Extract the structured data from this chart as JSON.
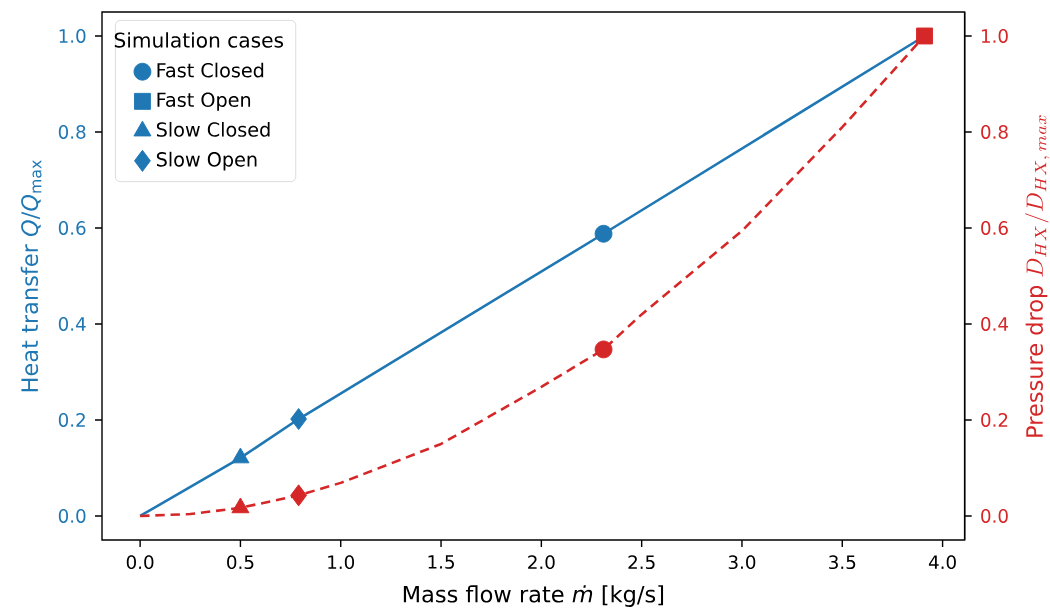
{
  "chart_data": {
    "type": "scatter",
    "xlabel": "Mass flow rate *ṁ* [kg/s]",
    "ylabel": "Heat transfer *Q*/*Q*$_{max}$",
    "y2label": "\\text{Pressure drop } D_{HX}/D_{HX,\\,max}",
    "legend_title": "Simulation cases",
    "legend": "top left",
    "xlim": [
      -0.19,
      4.11
    ],
    "ylim": [
      -0.05,
      1.05
    ],
    "y2lim": [
      -0.05,
      1.05
    ],
    "xticks": [
      {
        "value": 0,
        "label": "0.0"
      },
      {
        "value": 0.5,
        "label": "0.5"
      },
      {
        "value": 1,
        "label": "1.0"
      },
      {
        "value": 1.5,
        "label": "1.5"
      },
      {
        "value": 2,
        "label": "2.0"
      },
      {
        "value": 2.5,
        "label": "2.5"
      },
      {
        "value": 3,
        "label": "3.0"
      },
      {
        "value": 3.5,
        "label": "3.5"
      },
      {
        "value": 4,
        "label": "4.0"
      }
    ],
    "yticks": [
      {
        "value": 0,
        "label": "0.0"
      },
      {
        "value": 0.2,
        "label": "0.2"
      },
      {
        "value": 0.4,
        "label": "0.4"
      },
      {
        "value": 0.6,
        "label": "0.6"
      },
      {
        "value": 0.8,
        "label": "0.8"
      },
      {
        "value": 1,
        "label": "1.0"
      }
    ],
    "y2ticks": [
      {
        "value": 0,
        "label": "0.0"
      },
      {
        "value": 0.2,
        "label": "0.2"
      },
      {
        "value": 0.4,
        "label": "0.4"
      },
      {
        "value": 0.6,
        "label": "0.6"
      },
      {
        "value": 0.8,
        "label": "0.8"
      },
      {
        "value": 1,
        "label": "1.0"
      }
    ],
    "series": [
      {
        "type": "line",
        "x": [
          0,
          0.5,
          0.79,
          2.31,
          3.91
        ],
        "values": [
          0,
          0.121,
          0.202,
          0.588,
          1.0
        ],
        "color": "#1f77b4",
        "marker": "none",
        "line_style": "solid"
      },
      {
        "type": "line",
        "axis": "y2",
        "x": [
          0,
          0.25,
          0.5,
          0.79,
          1.0,
          1.5,
          2.0,
          2.31,
          2.5,
          3.0,
          3.5,
          3.91
        ],
        "values": [
          0,
          0.004,
          0.017,
          0.043,
          0.069,
          0.15,
          0.269,
          0.347,
          0.42,
          0.594,
          0.81,
          1.0
        ],
        "color": "#d62728",
        "marker": "none",
        "line_style": "dashed"
      },
      {
        "name": "Fast Closed",
        "x": [
          2.31
        ],
        "values": [
          0.588
        ],
        "color": "#1f77b4",
        "marker": "circle"
      },
      {
        "name": "Fast Open",
        "x": [
          null
        ],
        "values": [
          null
        ],
        "color": "#1f77b4",
        "marker": "square"
      },
      {
        "name": "Slow Closed",
        "x": [
          0.5
        ],
        "values": [
          0.121
        ],
        "color": "#1f77b4",
        "marker": "triangle"
      },
      {
        "name": "Slow Open",
        "x": [
          0.79
        ],
        "values": [
          0.202
        ],
        "color": "#1f77b4",
        "marker": "diamond"
      },
      {
        "axis": "y2",
        "x": [
          2.31
        ],
        "values": [
          0.347
        ],
        "color": "#d62728",
        "marker": "circle"
      },
      {
        "axis": "y2",
        "x": [
          3.91
        ],
        "values": [
          1.0
        ],
        "color": "#d62728",
        "marker": "square"
      },
      {
        "axis": "y2",
        "x": [
          0.5
        ],
        "values": [
          0.017
        ],
        "color": "#d62728",
        "marker": "triangle"
      },
      {
        "axis": "y2",
        "x": [
          0.79
        ],
        "values": [
          0.043
        ],
        "color": "#d62728",
        "marker": "diamond"
      }
    ]
  }
}
